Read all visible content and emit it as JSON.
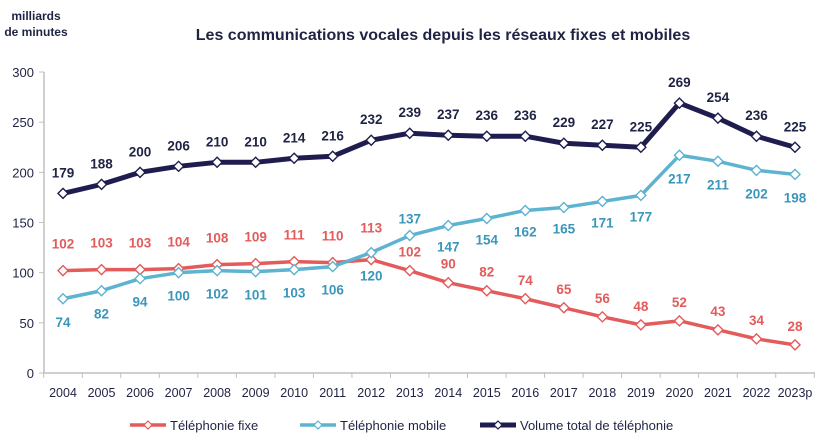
{
  "chart_data": {
    "type": "line",
    "title": "Les communications vocales depuis les réseaux fixes et mobiles",
    "ylabel_lines": [
      "milliards",
      "de minutes"
    ],
    "xlabel": "",
    "ylim": [
      0,
      300
    ],
    "yticks": [
      0,
      50,
      100,
      150,
      200,
      250,
      300
    ],
    "grid": false,
    "legend_position": "bottom",
    "categories": [
      "2004",
      "2005",
      "2006",
      "2007",
      "2008",
      "2009",
      "2010",
      "2011",
      "2012",
      "2013",
      "2014",
      "2015",
      "2016",
      "2017",
      "2018",
      "2019",
      "2020",
      "2021",
      "2022",
      "2023p"
    ],
    "series": [
      {
        "name": "Téléphonie fixe",
        "color": "#e35b5b",
        "label_color": "#e35b5b",
        "values": [
          102,
          103,
          103,
          104,
          108,
          109,
          111,
          110,
          113,
          102,
          90,
          82,
          74,
          65,
          56,
          48,
          52,
          43,
          34,
          28
        ],
        "label_side": "above"
      },
      {
        "name": "Téléphonie mobile",
        "color": "#5db3d0",
        "label_color": "#3a96ba",
        "values": [
          74,
          82,
          94,
          100,
          102,
          101,
          103,
          106,
          120,
          137,
          147,
          154,
          162,
          165,
          171,
          177,
          217,
          211,
          202,
          198
        ],
        "label_side": "below"
      },
      {
        "name": "Volume total de téléphonie",
        "color": "#1f1d4f",
        "label_color": "#1f2344",
        "values": [
          179,
          188,
          200,
          206,
          210,
          210,
          214,
          216,
          232,
          239,
          237,
          236,
          236,
          229,
          227,
          225,
          269,
          254,
          236,
          225
        ],
        "label_side": "above"
      }
    ]
  }
}
